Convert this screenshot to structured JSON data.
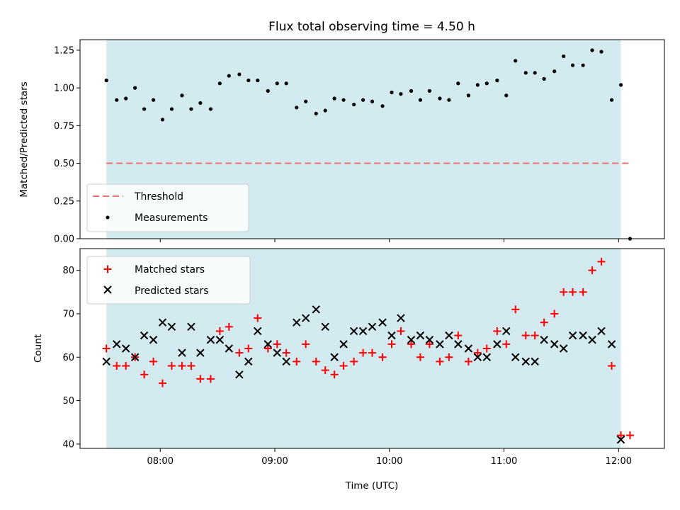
{
  "chart_data": [
    {
      "type": "scatter",
      "title": "Flux total observing time = 4.50 h",
      "ylabel": "Matched/Predicted stars",
      "xlabel": "",
      "x_unit": "hours UTC",
      "xlim": [
        7.3,
        12.4
      ],
      "ylim": [
        0,
        1.32
      ],
      "yticks": [
        "0.00",
        "0.25",
        "0.50",
        "0.75",
        "1.00",
        "1.25"
      ],
      "shaded_span": [
        7.53,
        12.02
      ],
      "shade_color": "#d3eaf0",
      "threshold": {
        "name": "Threshold",
        "y": 0.5,
        "x_range": [
          7.53,
          12.1
        ],
        "color": "#f07070"
      },
      "legend": {
        "location": "lower-left",
        "entries": [
          "Threshold",
          "Measurements"
        ]
      },
      "series": [
        {
          "name": "Measurements",
          "color": "#000000",
          "marker": "dot",
          "points": [
            [
              7.53,
              1.05
            ],
            [
              7.62,
              0.92
            ],
            [
              7.7,
              0.93
            ],
            [
              7.78,
              1.0
            ],
            [
              7.86,
              0.86
            ],
            [
              7.94,
              0.92
            ],
            [
              8.02,
              0.79
            ],
            [
              8.1,
              0.86
            ],
            [
              8.19,
              0.95
            ],
            [
              8.27,
              0.86
            ],
            [
              8.35,
              0.9
            ],
            [
              8.44,
              0.86
            ],
            [
              8.52,
              1.03
            ],
            [
              8.6,
              1.08
            ],
            [
              8.69,
              1.09
            ],
            [
              8.77,
              1.05
            ],
            [
              8.85,
              1.05
            ],
            [
              8.94,
              0.98
            ],
            [
              9.02,
              1.03
            ],
            [
              9.1,
              1.03
            ],
            [
              9.19,
              0.87
            ],
            [
              9.27,
              0.91
            ],
            [
              9.36,
              0.83
            ],
            [
              9.44,
              0.85
            ],
            [
              9.52,
              0.93
            ],
            [
              9.6,
              0.92
            ],
            [
              9.69,
              0.89
            ],
            [
              9.77,
              0.92
            ],
            [
              9.85,
              0.91
            ],
            [
              9.94,
              0.88
            ],
            [
              10.02,
              0.97
            ],
            [
              10.1,
              0.96
            ],
            [
              10.19,
              0.98
            ],
            [
              10.27,
              0.92
            ],
            [
              10.35,
              0.98
            ],
            [
              10.44,
              0.93
            ],
            [
              10.52,
              0.92
            ],
            [
              10.6,
              1.03
            ],
            [
              10.69,
              0.95
            ],
            [
              10.77,
              1.02
            ],
            [
              10.85,
              1.03
            ],
            [
              10.94,
              1.05
            ],
            [
              11.02,
              0.95
            ],
            [
              11.1,
              1.18
            ],
            [
              11.19,
              1.1
            ],
            [
              11.27,
              1.1
            ],
            [
              11.35,
              1.06
            ],
            [
              11.44,
              1.11
            ],
            [
              11.52,
              1.21
            ],
            [
              11.6,
              1.15
            ],
            [
              11.69,
              1.15
            ],
            [
              11.77,
              1.25
            ],
            [
              11.85,
              1.24
            ],
            [
              11.94,
              0.92
            ],
            [
              12.02,
              1.02
            ],
            [
              12.1,
              0.0
            ]
          ]
        }
      ]
    },
    {
      "type": "scatter",
      "title": "",
      "ylabel": "Count",
      "xlabel": "Time (UTC)",
      "x_unit": "hours UTC",
      "xlim": [
        7.3,
        12.4
      ],
      "ylim": [
        39,
        85
      ],
      "yticks": [
        "40",
        "50",
        "60",
        "70",
        "80"
      ],
      "xticks": [
        {
          "label": "08:00",
          "value": 8
        },
        {
          "label": "09:00",
          "value": 9
        },
        {
          "label": "10:00",
          "value": 10
        },
        {
          "label": "11:00",
          "value": 11
        },
        {
          "label": "12:00",
          "value": 12
        }
      ],
      "shaded_span": [
        7.53,
        12.02
      ],
      "shade_color": "#d3eaf0",
      "legend": {
        "location": "top-left",
        "entries": [
          "Matched stars",
          "Predicted stars"
        ]
      },
      "series": [
        {
          "name": "Matched stars",
          "color": "#ff0000",
          "marker": "plus",
          "points": [
            [
              7.53,
              62
            ],
            [
              7.62,
              58
            ],
            [
              7.7,
              58
            ],
            [
              7.78,
              60
            ],
            [
              7.86,
              56
            ],
            [
              7.94,
              59
            ],
            [
              8.02,
              54
            ],
            [
              8.1,
              58
            ],
            [
              8.19,
              58
            ],
            [
              8.27,
              58
            ],
            [
              8.35,
              55
            ],
            [
              8.44,
              55
            ],
            [
              8.52,
              66
            ],
            [
              8.6,
              67
            ],
            [
              8.69,
              61
            ],
            [
              8.77,
              62
            ],
            [
              8.85,
              69
            ],
            [
              8.94,
              62
            ],
            [
              9.02,
              63
            ],
            [
              9.1,
              61
            ],
            [
              9.19,
              59
            ],
            [
              9.27,
              63
            ],
            [
              9.36,
              59
            ],
            [
              9.44,
              57
            ],
            [
              9.52,
              56
            ],
            [
              9.6,
              58
            ],
            [
              9.69,
              59
            ],
            [
              9.77,
              61
            ],
            [
              9.85,
              61
            ],
            [
              9.94,
              60
            ],
            [
              10.02,
              63
            ],
            [
              10.1,
              66
            ],
            [
              10.19,
              63
            ],
            [
              10.27,
              60
            ],
            [
              10.35,
              63
            ],
            [
              10.44,
              59
            ],
            [
              10.52,
              60
            ],
            [
              10.6,
              65
            ],
            [
              10.69,
              59
            ],
            [
              10.77,
              61
            ],
            [
              10.85,
              62
            ],
            [
              10.94,
              66
            ],
            [
              11.02,
              63
            ],
            [
              11.1,
              71
            ],
            [
              11.19,
              65
            ],
            [
              11.27,
              65
            ],
            [
              11.35,
              68
            ],
            [
              11.44,
              70
            ],
            [
              11.52,
              75
            ],
            [
              11.6,
              75
            ],
            [
              11.69,
              75
            ],
            [
              11.77,
              80
            ],
            [
              11.85,
              82
            ],
            [
              11.94,
              58
            ],
            [
              12.02,
              42
            ],
            [
              12.1,
              42
            ]
          ]
        },
        {
          "name": "Predicted stars",
          "color": "#000000",
          "marker": "x",
          "points": [
            [
              7.53,
              59
            ],
            [
              7.62,
              63
            ],
            [
              7.7,
              62
            ],
            [
              7.78,
              60
            ],
            [
              7.86,
              65
            ],
            [
              7.94,
              64
            ],
            [
              8.02,
              68
            ],
            [
              8.1,
              67
            ],
            [
              8.19,
              61
            ],
            [
              8.27,
              67
            ],
            [
              8.35,
              61
            ],
            [
              8.44,
              64
            ],
            [
              8.52,
              64
            ],
            [
              8.6,
              62
            ],
            [
              8.69,
              56
            ],
            [
              8.77,
              59
            ],
            [
              8.85,
              66
            ],
            [
              8.94,
              63
            ],
            [
              9.02,
              61
            ],
            [
              9.1,
              59
            ],
            [
              9.19,
              68
            ],
            [
              9.27,
              69
            ],
            [
              9.36,
              71
            ],
            [
              9.44,
              67
            ],
            [
              9.52,
              60
            ],
            [
              9.6,
              63
            ],
            [
              9.69,
              66
            ],
            [
              9.77,
              66
            ],
            [
              9.85,
              67
            ],
            [
              9.94,
              68
            ],
            [
              10.02,
              65
            ],
            [
              10.1,
              69
            ],
            [
              10.19,
              64
            ],
            [
              10.27,
              65
            ],
            [
              10.35,
              64
            ],
            [
              10.44,
              63
            ],
            [
              10.52,
              65
            ],
            [
              10.6,
              63
            ],
            [
              10.69,
              62
            ],
            [
              10.77,
              60
            ],
            [
              10.85,
              60
            ],
            [
              10.94,
              63
            ],
            [
              11.02,
              66
            ],
            [
              11.1,
              60
            ],
            [
              11.19,
              59
            ],
            [
              11.27,
              59
            ],
            [
              11.35,
              64
            ],
            [
              11.44,
              63
            ],
            [
              11.52,
              62
            ],
            [
              11.6,
              65
            ],
            [
              11.69,
              65
            ],
            [
              11.77,
              64
            ],
            [
              11.85,
              66
            ],
            [
              11.94,
              63
            ],
            [
              12.02,
              41
            ]
          ]
        }
      ]
    }
  ]
}
